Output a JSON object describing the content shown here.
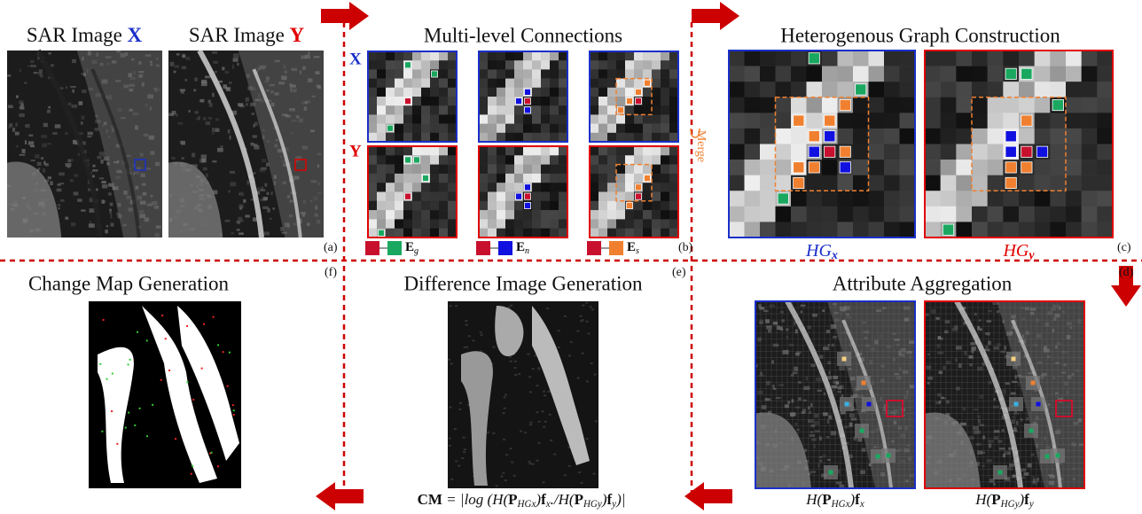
{
  "panel_a": {
    "image_x": {
      "title": "SAR Image",
      "letter": "X"
    },
    "image_y": {
      "title": "SAR Image",
      "letter": "Y"
    },
    "tag": "(a)"
  },
  "panel_b": {
    "title": "Multi-level Connections",
    "row_x": "X",
    "row_y": "Y",
    "merge": "Merge",
    "legend": [
      {
        "symbol": "E",
        "sub": "g"
      },
      {
        "symbol": "E",
        "sub": "n"
      },
      {
        "symbol": "E",
        "sub": "s"
      }
    ],
    "tag": "(b)"
  },
  "panel_c": {
    "title": "Heterogenous Graph Construction",
    "graph_x": {
      "base": "HG",
      "sub": "x"
    },
    "graph_y": {
      "base": "HG",
      "sub": "y"
    },
    "tag": "(c)"
  },
  "panel_d": {
    "title": "Attribute Aggregation",
    "label_x": [
      {
        "t": "H("
      },
      {
        "t": "P",
        "b": true
      },
      {
        "t": "HGx",
        "sub": true
      },
      {
        "t": ")"
      },
      {
        "t": "f",
        "b": true
      },
      {
        "t": "x",
        "sub": true
      }
    ],
    "label_y": [
      {
        "t": "H("
      },
      {
        "t": "P",
        "b": true
      },
      {
        "t": "HGy",
        "sub": true
      },
      {
        "t": ")"
      },
      {
        "t": "f",
        "b": true
      },
      {
        "t": "y",
        "sub": true
      }
    ],
    "tag": "(d)"
  },
  "panel_e": {
    "title": "Difference Image Generation",
    "formula": [
      {
        "t": "CM",
        "b": true
      },
      {
        "t": " = |log (H("
      },
      {
        "t": "P",
        "b": true
      },
      {
        "t": "HGx",
        "sub": true
      },
      {
        "t": ")"
      },
      {
        "t": "f",
        "b": true
      },
      {
        "t": "x",
        "sub": true
      },
      {
        "t": "./H("
      },
      {
        "t": "P",
        "b": true
      },
      {
        "t": "HGy",
        "sub": true
      },
      {
        "t": ")"
      },
      {
        "t": "f",
        "b": true
      },
      {
        "t": "y",
        "sub": true
      },
      {
        "t": ")|"
      }
    ],
    "tag": "(e)"
  },
  "panel_f": {
    "title": "Change Map Generation",
    "tag": "(f)"
  }
}
